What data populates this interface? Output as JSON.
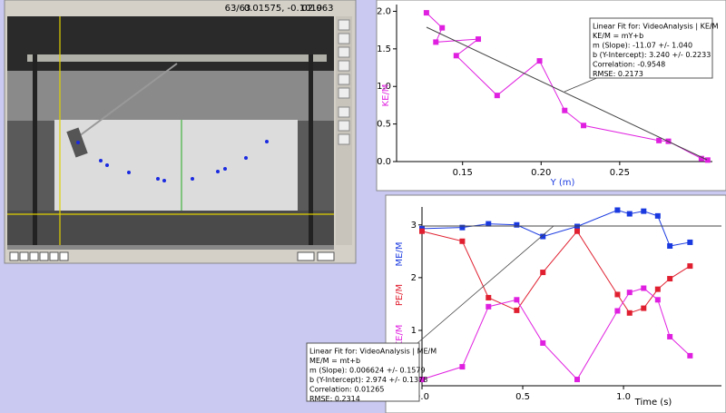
{
  "video": {
    "frame": "63/63",
    "coords": "0.01575, -0.1019",
    "time": "02.063"
  },
  "graph_top": {
    "x_label": "Y (m)",
    "y_label": "KE/M",
    "xlim": [
      0.108,
      0.309
    ],
    "ylim": [
      0,
      2.09
    ],
    "xticks": [
      0.15,
      {
        "value": 0.2,
        "label": "0.20"
      },
      0.25
    ],
    "yticks": [
      {
        "value": 0,
        "label": "0.0"
      },
      0.5,
      {
        "value": 1,
        "label": "1.0"
      },
      1.5,
      {
        "value": 2,
        "label": "2.0"
      }
    ],
    "series": [
      {
        "color": "#e020e0",
        "x": [
          0.127,
          0.137,
          0.133,
          0.16,
          0.146,
          0.172,
          0.199,
          0.215,
          0.227,
          0.275,
          0.281,
          0.302,
          0.306
        ],
        "values": [
          1.98,
          1.78,
          1.59,
          1.63,
          1.41,
          0.88,
          1.34,
          0.68,
          0.48,
          0.28,
          0.27,
          0.04,
          0.02
        ]
      }
    ],
    "fit": [
      "Linear Fit for: VideoAnalysis | KE/M",
      "KE/M = mY+b",
      "m (Slope): -11.07 +/- 1.040",
      "b (Y-Intercept): 3.240 +/- 0.2233",
      "Correlation: -0.9548",
      "RMSE: 0.2173"
    ]
  },
  "graph_bottom": {
    "x_label": "Time (s)",
    "xlim": [
      0,
      1.486
    ],
    "ylim": [
      -0.05,
      3.34
    ],
    "xticks": [
      {
        "value": 0,
        "label": "0.0"
      },
      0.5,
      {
        "value": 1,
        "label": "1.0"
      }
    ],
    "yticks": [
      1,
      2,
      3
    ],
    "series": [
      {
        "name": "ME/M",
        "color": "#1a3ae0",
        "x": [
          0,
          0.2,
          0.33,
          0.47,
          0.6,
          0.77,
          0.97,
          1.03,
          1.1,
          1.17,
          1.23,
          1.33
        ],
        "values": [
          2.93,
          2.95,
          3.02,
          3.0,
          2.78,
          2.97,
          3.28,
          3.21,
          3.26,
          3.17,
          2.6,
          2.67
        ]
      },
      {
        "name": "PE/M",
        "color": "#e02030",
        "x": [
          0,
          0.2,
          0.33,
          0.47,
          0.6,
          0.77,
          0.97,
          1.03,
          1.1,
          1.17,
          1.23,
          1.33
        ],
        "values": [
          2.88,
          2.69,
          1.62,
          1.38,
          2.1,
          2.88,
          1.68,
          1.33,
          1.42,
          1.78,
          1.98,
          2.22
        ]
      },
      {
        "name": "KE/M",
        "color": "#e020e0",
        "x": [
          0,
          0.2,
          0.33,
          0.47,
          0.6,
          0.77,
          0.97,
          1.03,
          1.1,
          1.17,
          1.23,
          1.33
        ],
        "values": [
          0.07,
          0.31,
          1.45,
          1.58,
          0.76,
          0.07,
          1.37,
          1.72,
          1.8,
          1.58,
          0.88,
          0.52
        ]
      }
    ],
    "fit": [
      "Linear Fit for: VideoAnalysis | ME/M",
      "ME/M = mt+b",
      "m (Slope): 0.006624 +/- 0.1579",
      "b (Y-Intercept): 2.974 +/- 0.1378",
      "Correlation: 0.01265",
      "RMSE: 0.2314"
    ]
  }
}
